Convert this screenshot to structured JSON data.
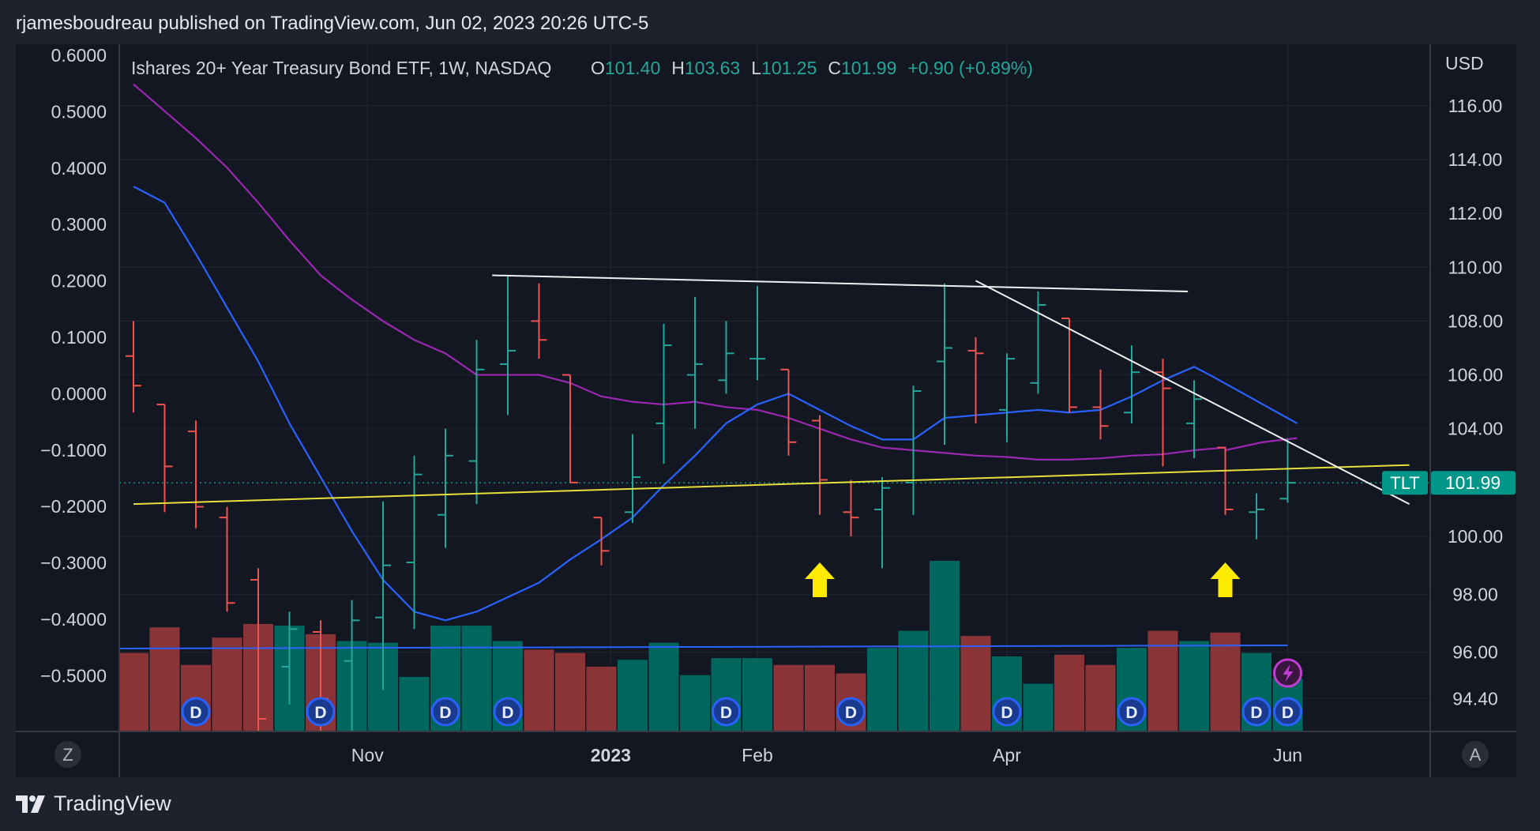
{
  "header": {
    "publisher_line": "rjamesboudreau published on TradingView.com, Jun 02, 2023 20:26 UTC-5"
  },
  "legend": {
    "symbol": "Ishares 20+ Year Treasury Bond ETF, 1W, NASDAQ",
    "open_label": "O",
    "open": "101.40",
    "high_label": "H",
    "high": "103.63",
    "low_label": "L",
    "low": "101.25",
    "close_label": "C",
    "close": "101.99",
    "change": "+0.90 (+0.89%)"
  },
  "currency": "USD",
  "price_tag": {
    "symbol": "TLT",
    "price": "101.99"
  },
  "bottom_left_button": "Z",
  "bottom_right_button": "A",
  "branding": "TradingView",
  "colors": {
    "background": "#131722",
    "up": "#26a69a",
    "down": "#ef5350",
    "up_volume": "#00675f",
    "down_volume": "#8b3437",
    "ma_fast": "#2962ff",
    "ma_slow": "#9c27b0",
    "trendline_yellow": "#e8e03a",
    "trendline_white": "#f0f0f0",
    "arrow": "#ffeb00",
    "price_tag": "#009688"
  },
  "chart_data": {
    "type": "ohlc",
    "y_right_ticks": [
      "116.00",
      "114.00",
      "112.00",
      "110.00",
      "108.00",
      "106.00",
      "104.00",
      "100.00",
      "98.00",
      "96.00",
      "94.40"
    ],
    "y_left_ticks": [
      "0.6000",
      "0.5000",
      "0.4000",
      "0.3000",
      "0.2000",
      "0.1000",
      "0.0000",
      "−0.1000",
      "−0.2000",
      "−0.3000",
      "−0.4000",
      "−0.5000"
    ],
    "x_labels": [
      {
        "label": "Nov",
        "bar": 7.5,
        "bold": false
      },
      {
        "label": "2023",
        "bar": 15.3,
        "bold": true
      },
      {
        "label": "Feb",
        "bar": 20,
        "bold": false
      },
      {
        "label": "Apr",
        "bar": 28,
        "bold": false
      },
      {
        "label": "Jun",
        "bar": 37,
        "bold": false
      }
    ],
    "bars": [
      {
        "o": 106.7,
        "h": 108.0,
        "l": 104.6,
        "c": 105.6,
        "v": 0.46
      },
      {
        "o": 104.9,
        "h": 104.9,
        "l": 100.9,
        "c": 102.6,
        "v": 0.61
      },
      {
        "o": 103.9,
        "h": 104.3,
        "l": 100.3,
        "c": 101.1,
        "v": 0.39
      },
      {
        "o": 100.7,
        "h": 101.1,
        "l": 97.4,
        "c": 97.7,
        "v": 0.55
      },
      {
        "o": 98.5,
        "h": 98.9,
        "l": 93.0,
        "c": 93.7,
        "v": 0.63
      },
      {
        "o": 95.5,
        "h": 97.4,
        "l": 94.2,
        "c": 96.8,
        "v": 0.62
      },
      {
        "o": 96.7,
        "h": 97.1,
        "l": 93.0,
        "c": 94.4,
        "v": 0.57
      },
      {
        "o": 95.7,
        "h": 97.8,
        "l": 93.0,
        "c": 97.1,
        "v": 0.53
      },
      {
        "o": 97.2,
        "h": 101.3,
        "l": 94.7,
        "c": 99.0,
        "v": 0.52
      },
      {
        "o": 99.1,
        "h": 103.0,
        "l": 96.8,
        "c": 102.3,
        "v": 0.32
      },
      {
        "o": 100.8,
        "h": 104.0,
        "l": 99.6,
        "c": 103.0,
        "v": 0.62
      },
      {
        "o": 102.8,
        "h": 107.3,
        "l": 101.2,
        "c": 106.2,
        "v": 0.62
      },
      {
        "o": 106.4,
        "h": 109.7,
        "l": 104.5,
        "c": 106.9,
        "v": 0.53
      },
      {
        "o": 108.0,
        "h": 109.4,
        "l": 106.6,
        "c": 107.3,
        "v": 0.48
      },
      {
        "o": 106.0,
        "h": 106.0,
        "l": 102.0,
        "c": 102.0,
        "v": 0.46
      },
      {
        "o": 100.7,
        "h": 100.7,
        "l": 99.0,
        "c": 99.5,
        "v": 0.38
      },
      {
        "o": 100.9,
        "h": 103.8,
        "l": 100.5,
        "c": 102.2,
        "v": 0.42
      },
      {
        "o": 104.2,
        "h": 107.9,
        "l": 102.7,
        "c": 107.1,
        "v": 0.52
      },
      {
        "o": 106.0,
        "h": 108.9,
        "l": 104.0,
        "c": 106.4,
        "v": 0.33
      },
      {
        "o": 105.8,
        "h": 108.0,
        "l": 105.3,
        "c": 106.8,
        "v": 0.43
      },
      {
        "o": 106.6,
        "h": 109.3,
        "l": 105.8,
        "c": 106.6,
        "v": 0.43
      },
      {
        "o": 106.2,
        "h": 106.2,
        "l": 103.0,
        "c": 103.5,
        "v": 0.39
      },
      {
        "o": 104.3,
        "h": 104.5,
        "l": 100.8,
        "c": 102.1,
        "v": 0.39
      },
      {
        "o": 100.9,
        "h": 102.1,
        "l": 100.0,
        "c": 100.7,
        "v": 0.34
      },
      {
        "o": 101.0,
        "h": 102.2,
        "l": 98.9,
        "c": 101.8,
        "v": 0.49
      },
      {
        "o": 102.0,
        "h": 105.6,
        "l": 100.8,
        "c": 105.4,
        "v": 0.59
      },
      {
        "o": 106.5,
        "h": 109.4,
        "l": 103.4,
        "c": 107.0,
        "v": 1.0
      },
      {
        "o": 106.9,
        "h": 107.4,
        "l": 104.2,
        "c": 106.8,
        "v": 0.56
      },
      {
        "o": 104.7,
        "h": 106.8,
        "l": 103.5,
        "c": 106.6,
        "v": 0.44
      },
      {
        "o": 105.7,
        "h": 109.1,
        "l": 105.3,
        "c": 108.6,
        "v": 0.28
      },
      {
        "o": 108.1,
        "h": 108.1,
        "l": 104.6,
        "c": 104.8,
        "v": 0.45
      },
      {
        "o": 104.8,
        "h": 106.2,
        "l": 103.6,
        "c": 104.1,
        "v": 0.39
      },
      {
        "o": 104.6,
        "h": 107.1,
        "l": 104.2,
        "c": 106.1,
        "v": 0.49
      },
      {
        "o": 106.1,
        "h": 106.6,
        "l": 102.6,
        "c": 105.5,
        "v": 0.59
      },
      {
        "o": 104.2,
        "h": 105.8,
        "l": 102.9,
        "c": 105.1,
        "v": 0.53
      },
      {
        "o": 103.3,
        "h": 103.3,
        "l": 100.8,
        "c": 101.0,
        "v": 0.58
      },
      {
        "o": 100.9,
        "h": 101.6,
        "l": 99.9,
        "c": 101.0,
        "v": 0.46
      },
      {
        "o": 101.4,
        "h": 103.63,
        "l": 101.25,
        "c": 101.99,
        "v": 0.31
      }
    ],
    "ma_fast": [
      113.0,
      112.4,
      110.5,
      108.5,
      106.5,
      104.2,
      102.2,
      100.2,
      98.5,
      97.4,
      97.1,
      97.4,
      97.9,
      98.4,
      99.2,
      99.9,
      100.7,
      101.9,
      103.0,
      104.2,
      104.9,
      105.3,
      104.7,
      104.1,
      103.6,
      103.6,
      104.4,
      104.5,
      104.6,
      104.7,
      104.6,
      104.7,
      105.2,
      105.8,
      106.3,
      null,
      null,
      null
    ],
    "ma_fast_end": [
      [
        34.5,
        106.0
      ],
      [
        37.3,
        104.2
      ]
    ],
    "ma_slow": [
      116.8,
      115.8,
      114.8,
      113.7,
      112.4,
      111.0,
      109.7,
      108.8,
      108.0,
      107.3,
      106.8,
      106.0,
      106.0,
      106.0,
      105.7,
      105.2,
      105.0,
      104.9,
      105.0,
      104.8,
      104.7,
      104.4,
      104.0,
      103.6,
      103.3,
      103.2,
      103.1,
      103.0,
      102.95,
      102.85,
      102.85,
      102.9,
      103.0,
      103.05,
      103.2,
      103.3,
      null,
      null
    ],
    "ma_slow_end": [
      [
        35.0,
        103.2
      ],
      [
        36.2,
        103.5
      ],
      [
        37.3,
        103.65
      ]
    ],
    "volume_ma": 0.5,
    "dividend_markers": [
      2,
      6,
      10,
      12,
      19,
      23,
      28,
      32,
      36,
      37
    ],
    "arrows": [
      22,
      35
    ],
    "trendlines": [
      {
        "color": "yellow",
        "from": [
          0,
          101.2
        ],
        "to": [
          40.9,
          102.65
        ]
      },
      {
        "color": "white",
        "from": [
          11.5,
          109.7
        ],
        "to": [
          33.8,
          109.1
        ]
      },
      {
        "color": "white",
        "from": [
          27,
          109.5
        ],
        "to": [
          40.9,
          101.2
        ]
      }
    ]
  }
}
